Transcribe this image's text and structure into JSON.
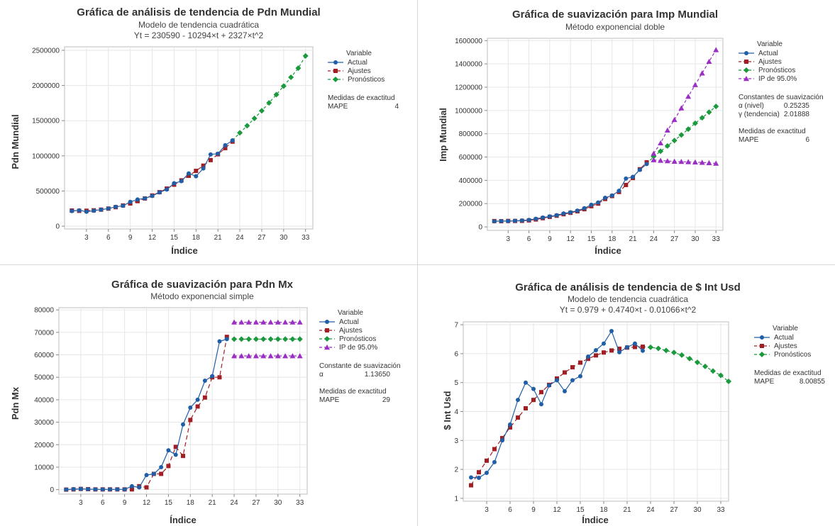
{
  "charts": [
    {
      "key": "tl",
      "title": "Gráfica de análisis de tendencia de Pdn Mundial",
      "subtitles": [
        "Modelo de tendencia cuadrática",
        "Yt = 230590 - 10294×t + 2327×t^2"
      ],
      "xlabel": "Índice",
      "ylabel": "Pdn Mundial",
      "legend": {
        "title": "Variable",
        "entries": [
          {
            "name": "Actual",
            "color": "#1f5fa8",
            "marker": "circle"
          },
          {
            "name": "Ajustes",
            "color": "#a11f24",
            "marker": "square"
          },
          {
            "name": "Pronósticos",
            "color": "#1a9a3c",
            "marker": "diamond"
          }
        ],
        "blocks": [
          {
            "title": "Medidas de exactitud",
            "rows": [
              [
                "MAPE",
                "4"
              ]
            ]
          }
        ]
      }
    },
    {
      "key": "tr",
      "title": "Gráfica de suavización  para Imp Mundial",
      "subtitles": [
        "Método exponencial doble"
      ],
      "xlabel": "Índice",
      "ylabel": "Imp Mundial",
      "legend": {
        "title": "Variable",
        "entries": [
          {
            "name": "Actual",
            "color": "#1f5fa8",
            "marker": "circle"
          },
          {
            "name": "Ajustes",
            "color": "#a11f24",
            "marker": "square"
          },
          {
            "name": "Pronósticos",
            "color": "#1a9a3c",
            "marker": "diamond"
          },
          {
            "name": "IP de 95.0%",
            "color": "#9b2fc4",
            "marker": "triangle"
          }
        ],
        "blocks": [
          {
            "title": "Constantes de suavización",
            "rows": [
              [
                "α (nivel)",
                "0.25235"
              ],
              [
                "γ (tendencia)",
                "2.01888"
              ]
            ]
          },
          {
            "title": "Medidas de exactitud",
            "rows": [
              [
                "MAPE",
                "6"
              ]
            ]
          }
        ]
      }
    },
    {
      "key": "bl",
      "title": "Gráfica de suavización  para Pdn Mx",
      "subtitles": [
        "Método exponencial simple"
      ],
      "xlabel": "Índice",
      "ylabel": "Pdn Mx",
      "legend": {
        "title": "Variable",
        "entries": [
          {
            "name": "Actual",
            "color": "#1f5fa8",
            "marker": "circle"
          },
          {
            "name": "Ajustes",
            "color": "#a11f24",
            "marker": "square"
          },
          {
            "name": "Pronósticos",
            "color": "#1a9a3c",
            "marker": "diamond"
          },
          {
            "name": "IP de 95.0%",
            "color": "#9b2fc4",
            "marker": "triangle"
          }
        ],
        "blocks": [
          {
            "title": "Constante de suavización",
            "rows": [
              [
                "α",
                "1.13650"
              ]
            ]
          },
          {
            "title": "Medidas de exactitud",
            "rows": [
              [
                "MAPE",
                "29"
              ]
            ]
          }
        ]
      }
    },
    {
      "key": "br",
      "title": "Gráfica de análisis de tendencia de $ Int Usd",
      "subtitles": [
        "Modelo de tendencia cuadrática",
        "Yt = 0.979 + 0.4740×t - 0.01066×t^2"
      ],
      "xlabel": "Índice",
      "ylabel": "$ Int Usd",
      "legend": {
        "title": "Variable",
        "entries": [
          {
            "name": "Actual",
            "color": "#1f5fa8",
            "marker": "circle"
          },
          {
            "name": "Ajustes",
            "color": "#a11f24",
            "marker": "square"
          },
          {
            "name": "Pronósticos",
            "color": "#1a9a3c",
            "marker": "diamond"
          }
        ],
        "blocks": [
          {
            "title": "Medidas de exactitud",
            "rows": [
              [
                "MAPE",
                "8.00855"
              ]
            ]
          }
        ]
      }
    }
  ],
  "chart_data": [
    {
      "type": "line",
      "title": "Gráfica de análisis de tendencia de Pdn Mundial",
      "xlabel": "Índice",
      "ylabel": "Pdn Mundial",
      "xlim": [
        0,
        34
      ],
      "ylim": [
        -40000,
        2550000
      ],
      "xticks": [
        3,
        6,
        9,
        12,
        15,
        18,
        21,
        24,
        27,
        30,
        33
      ],
      "yticks": [
        0,
        500000,
        1000000,
        1500000,
        2000000,
        2500000
      ],
      "grid": true,
      "legend_position": "right",
      "series": [
        {
          "name": "Actual",
          "start": 1,
          "values": [
            215000,
            225000,
            205000,
            220000,
            235000,
            250000,
            275000,
            290000,
            345000,
            380000,
            395000,
            430000,
            480000,
            520000,
            610000,
            640000,
            750000,
            710000,
            820000,
            1020000,
            1030000,
            1150000,
            1220000
          ]
        },
        {
          "name": "Ajustes",
          "start": 1,
          "values": [
            222000,
            218000,
            219000,
            225000,
            235000,
            250000,
            270000,
            294000,
            323000,
            356000,
            394000,
            436000,
            483000,
            534000,
            590000,
            651000,
            716000,
            786000,
            860000,
            939000,
            1022000,
            1110000,
            1202000
          ]
        },
        {
          "name": "Pronósticos",
          "start": 23,
          "values": [
            1220000,
            1327000,
            1427000,
            1532000,
            1640000,
            1752000,
            1870000,
            1991000,
            2117000,
            2247000,
            2420000
          ]
        }
      ]
    },
    {
      "type": "line",
      "title": "Gráfica de suavización  para Imp Mundial",
      "xlabel": "Índice",
      "ylabel": "Imp Mundial",
      "xlim": [
        0,
        34
      ],
      "ylim": [
        -30000,
        1620000
      ],
      "xticks": [
        3,
        6,
        9,
        12,
        15,
        18,
        21,
        24,
        27,
        30,
        33
      ],
      "yticks": [
        0,
        200000,
        400000,
        600000,
        800000,
        1000000,
        1200000,
        1400000,
        1600000
      ],
      "grid": true,
      "legend_position": "right",
      "series": [
        {
          "name": "Actual",
          "start": 1,
          "values": [
            48000,
            50000,
            50000,
            52000,
            55000,
            60000,
            70000,
            80000,
            90000,
            100000,
            115000,
            125000,
            140000,
            160000,
            190000,
            210000,
            250000,
            270000,
            310000,
            415000,
            430000,
            490000,
            540000
          ]
        },
        {
          "name": "Ajustes",
          "start": 1,
          "values": [
            50000,
            49000,
            51000,
            51000,
            52000,
            56000,
            64000,
            75000,
            86000,
            96000,
            109000,
            121000,
            134000,
            152000,
            178000,
            200000,
            240000,
            265000,
            300000,
            360000,
            420000,
            495000,
            555000
          ]
        },
        {
          "name": "Pronósticos",
          "start": 23,
          "values": [
            540000,
            605000,
            650000,
            695000,
            742000,
            790000,
            840000,
            890000,
            937000,
            985000,
            1035000
          ]
        },
        {
          "name": "IP de 95.0% (superior)",
          "start": 24,
          "values": [
            630000,
            720000,
            830000,
            920000,
            1020000,
            1120000,
            1220000,
            1320000,
            1420000,
            1520000
          ]
        },
        {
          "name": "IP de 95.0% (inferior)",
          "start": 24,
          "values": [
            575000,
            570000,
            566000,
            562000,
            560000,
            558000,
            556000,
            553000,
            550000,
            545000
          ]
        }
      ]
    },
    {
      "type": "line",
      "title": "Gráfica de suavización  para Pdn Mx",
      "xlabel": "Índice",
      "ylabel": "Pdn Mx",
      "xlim": [
        0,
        34
      ],
      "ylim": [
        -2000,
        81000
      ],
      "xticks": [
        3,
        6,
        9,
        12,
        15,
        18,
        21,
        24,
        27,
        30,
        33
      ],
      "yticks": [
        0,
        10000,
        20000,
        30000,
        40000,
        50000,
        60000,
        70000,
        80000
      ],
      "grid": true,
      "legend_position": "right",
      "series": [
        {
          "name": "Actual",
          "start": 1,
          "values": [
            0,
            200,
            300,
            200,
            100,
            100,
            100,
            100,
            100,
            1500,
            1000,
            6500,
            7000,
            10000,
            17500,
            15500,
            29000,
            36500,
            40000,
            48500,
            50500,
            66000,
            67000
          ]
        },
        {
          "name": "Ajustes",
          "start": 1,
          "values": [
            0,
            100,
            300,
            200,
            100,
            100,
            100,
            100,
            100,
            100,
            1500,
            1000,
            7000,
            7000,
            10500,
            19000,
            15000,
            31000,
            37000,
            41000,
            50000,
            50000,
            68000
          ]
        },
        {
          "name": "Pronósticos",
          "start": 24,
          "values": [
            67000,
            67000,
            67000,
            67000,
            67000,
            67000,
            67000,
            67000,
            67000,
            67000
          ]
        },
        {
          "name": "IP de 95.0% (superior)",
          "start": 24,
          "values": [
            74500,
            74500,
            74500,
            74500,
            74500,
            74500,
            74500,
            74500,
            74500,
            74500
          ]
        },
        {
          "name": "IP de 95.0% (inferior)",
          "start": 24,
          "values": [
            59500,
            59500,
            59500,
            59500,
            59500,
            59500,
            59500,
            59500,
            59500,
            59500
          ]
        }
      ]
    },
    {
      "type": "line",
      "title": "Gráfica de análisis de tendencia de $ Int Usd",
      "xlabel": "Índice",
      "ylabel": "$ Int Usd",
      "xlim": [
        0,
        34
      ],
      "ylim": [
        0.9,
        7.1
      ],
      "xticks": [
        3,
        6,
        9,
        12,
        15,
        18,
        21,
        24,
        27,
        30,
        33
      ],
      "yticks": [
        1,
        2,
        3,
        4,
        5,
        6,
        7
      ],
      "grid": true,
      "legend_position": "right",
      "series": [
        {
          "name": "Actual",
          "start": 1,
          "values": [
            1.72,
            1.71,
            1.88,
            2.25,
            3.0,
            3.55,
            4.4,
            5.0,
            4.78,
            4.25,
            4.9,
            5.08,
            4.7,
            5.08,
            5.22,
            5.9,
            6.12,
            6.35,
            6.78,
            6.05,
            6.22,
            6.35,
            6.1
          ]
        },
        {
          "name": "Ajustes",
          "start": 1,
          "values": [
            1.45,
            1.9,
            2.3,
            2.7,
            3.08,
            3.45,
            3.79,
            4.11,
            4.4,
            4.67,
            4.92,
            5.14,
            5.35,
            5.53,
            5.69,
            5.82,
            5.94,
            6.04,
            6.11,
            6.17,
            6.21,
            6.23,
            6.24
          ]
        },
        {
          "name": "Pronósticos",
          "start": 23,
          "values": [
            6.24,
            6.22,
            6.18,
            6.11,
            6.04,
            5.95,
            5.83,
            5.7,
            5.56,
            5.4,
            5.25,
            5.04
          ]
        }
      ]
    }
  ]
}
